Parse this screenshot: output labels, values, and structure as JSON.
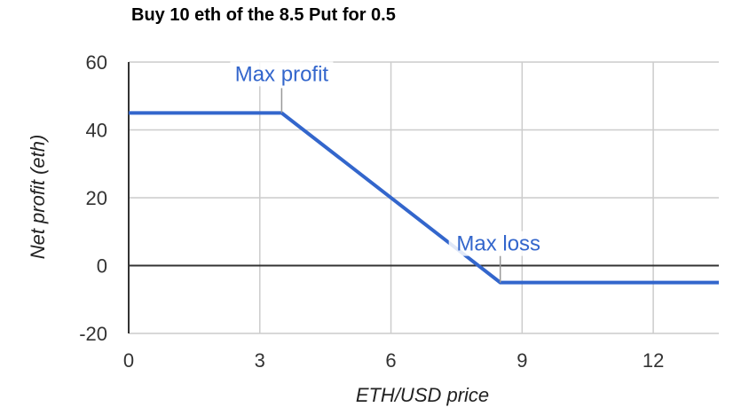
{
  "chart_data": {
    "type": "line",
    "title": "Buy 10 eth of the 8.5 Put for 0.5",
    "xlabel": "ETH/USD price",
    "ylabel": "Net profit (eth)",
    "xlim": [
      0,
      13.5
    ],
    "ylim": [
      -20,
      60
    ],
    "xticks": [
      0,
      3,
      6,
      9,
      12
    ],
    "yticks": [
      -20,
      0,
      20,
      40,
      60
    ],
    "xtick_labels": [
      "0",
      "3",
      "6",
      "9",
      "12"
    ],
    "ytick_labels": [
      "-20",
      "0",
      "20",
      "40",
      "60"
    ],
    "grid": true,
    "series": [
      {
        "x": [
          0,
          3.5,
          8.5,
          13.5
        ],
        "y": [
          45,
          45,
          -5,
          -5
        ],
        "color": "#3366cc"
      }
    ],
    "annotations": [
      {
        "text": "Max profit",
        "x": 3.5,
        "y": 45,
        "color": "#3366cc"
      },
      {
        "text": "Max loss",
        "x": 8.5,
        "y": -5,
        "color": "#3366cc"
      }
    ]
  }
}
